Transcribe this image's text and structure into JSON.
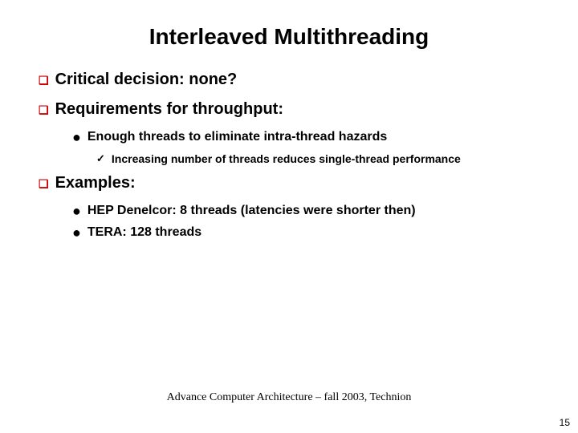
{
  "title": "Interleaved Multithreading",
  "bullets": {
    "b1": "Critical decision: none?",
    "b2": "Requirements for throughput:",
    "b2_1": "Enough threads to eliminate intra-thread hazards",
    "b2_1_1": "Increasing number of threads reduces single-thread performance",
    "b3": "Examples:",
    "b3_1": "HEP Denelcor: 8 threads (latencies were shorter then)",
    "b3_2": "TERA: 128 threads"
  },
  "glyphs": {
    "square": "❑",
    "dot": "●",
    "check": "✓"
  },
  "footer": "Advance Computer Architecture – fall 2003, Technion",
  "pagenum": "15",
  "colors": {
    "accent": "#cc0000"
  }
}
